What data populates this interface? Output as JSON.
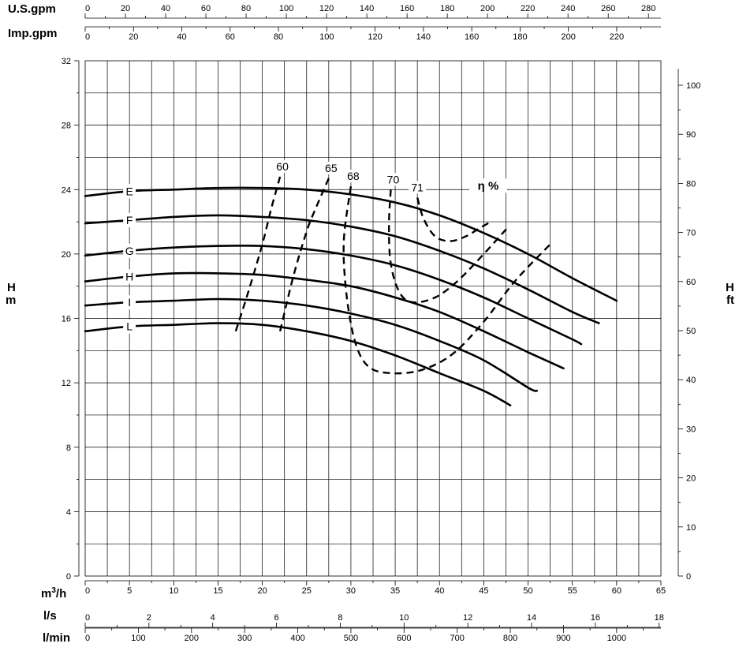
{
  "chart_data": {
    "type": "line",
    "top_axes": [
      {
        "unit": "U.S.gpm",
        "ticks": [
          0,
          20,
          40,
          60,
          80,
          100,
          120,
          140,
          160,
          180,
          200,
          220,
          240,
          260,
          280
        ],
        "per_m3h": 4.4029
      },
      {
        "unit": "Imp.gpm",
        "ticks": [
          0,
          20,
          40,
          60,
          80,
          100,
          120,
          140,
          160,
          180,
          200,
          220
        ],
        "per_m3h": 3.6662
      }
    ],
    "bottom_axes": [
      {
        "unit": "m",
        "superscript": "3",
        "unit_suffix": "/h",
        "ticks": [
          0,
          5,
          10,
          15,
          20,
          25,
          30,
          35,
          40,
          45,
          50,
          55,
          60,
          65
        ],
        "per_m3h": 1
      },
      {
        "unit": "l/s",
        "ticks": [
          0,
          2,
          4,
          6,
          8,
          10,
          12,
          14,
          16,
          18
        ],
        "per_m3h": 0.27778
      },
      {
        "unit": "l/min",
        "ticks": [
          0,
          100,
          200,
          300,
          400,
          500,
          600,
          700,
          800,
          900,
          1000
        ],
        "per_m3h": 16.6667
      }
    ],
    "left_axis": {
      "unit_line1": "H",
      "unit_line2": "m",
      "ticks": [
        0,
        4,
        8,
        12,
        16,
        20,
        24,
        28,
        32
      ],
      "ylim": [
        0,
        32
      ]
    },
    "right_axis": {
      "unit_line1": "H",
      "unit_line2": "ft",
      "ticks": [
        0,
        10,
        20,
        30,
        40,
        50,
        60,
        70,
        80,
        90,
        100
      ],
      "per_m": 3.2808
    },
    "xlim": [
      0,
      65
    ],
    "grid": true,
    "series": [
      {
        "name": "E",
        "x": [
          0,
          5,
          10,
          15,
          20,
          25,
          30,
          35,
          40,
          45,
          50,
          55,
          60
        ],
        "y": [
          23.6,
          23.9,
          24.0,
          24.1,
          24.1,
          24.0,
          23.7,
          23.2,
          22.4,
          21.3,
          20.0,
          18.5,
          17.1
        ]
      },
      {
        "name": "F",
        "x": [
          0,
          5,
          10,
          15,
          20,
          25,
          30,
          35,
          40,
          45,
          50,
          55,
          58
        ],
        "y": [
          21.9,
          22.1,
          22.3,
          22.4,
          22.3,
          22.1,
          21.7,
          21.1,
          20.2,
          19.1,
          17.8,
          16.4,
          15.7
        ]
      },
      {
        "name": "G",
        "x": [
          0,
          5,
          10,
          15,
          20,
          25,
          30,
          35,
          40,
          45,
          50,
          55,
          56
        ],
        "y": [
          19.9,
          20.2,
          20.4,
          20.5,
          20.5,
          20.3,
          19.9,
          19.3,
          18.4,
          17.3,
          16.0,
          14.7,
          14.4
        ]
      },
      {
        "name": "H",
        "x": [
          0,
          5,
          10,
          15,
          20,
          25,
          30,
          35,
          40,
          45,
          50,
          54
        ],
        "y": [
          18.3,
          18.6,
          18.8,
          18.8,
          18.7,
          18.4,
          18.0,
          17.3,
          16.4,
          15.2,
          13.9,
          12.9
        ]
      },
      {
        "name": "I",
        "x": [
          0,
          5,
          10,
          15,
          20,
          25,
          30,
          35,
          40,
          45,
          50,
          51
        ],
        "y": [
          16.8,
          17.0,
          17.1,
          17.2,
          17.1,
          16.8,
          16.3,
          15.6,
          14.6,
          13.4,
          11.7,
          11.5
        ]
      },
      {
        "name": "L",
        "x": [
          0,
          5,
          10,
          15,
          20,
          25,
          30,
          35,
          40,
          45,
          48
        ],
        "y": [
          15.2,
          15.5,
          15.6,
          15.7,
          15.6,
          15.2,
          14.6,
          13.7,
          12.6,
          11.5,
          10.6
        ]
      }
    ],
    "efficiency_title": "η %",
    "efficiency_curves": [
      {
        "label": "60",
        "x": [
          17,
          18.5,
          20,
          21,
          22
        ],
        "y": [
          15.2,
          17.8,
          20.6,
          22.8,
          24.8
        ]
      },
      {
        "label": "65",
        "x": [
          22,
          23.5,
          25,
          26,
          27.5
        ],
        "y": [
          15.2,
          18.6,
          21.4,
          22.8,
          24.7
        ]
      },
      {
        "label": "68",
        "x": [
          30,
          29.2,
          29.5,
          30.5,
          32,
          34.5,
          38,
          41.5,
          45,
          48.5,
          52.5
        ],
        "y": [
          24.2,
          20.8,
          17.5,
          14.5,
          13.0,
          12.6,
          12.8,
          13.8,
          15.8,
          18.3,
          20.6
        ]
      },
      {
        "label": "70",
        "x": [
          34.5,
          34.3,
          34.5,
          35.5,
          37,
          39.5,
          42,
          45,
          47.8
        ],
        "y": [
          24.0,
          21.8,
          19.4,
          17.6,
          17.0,
          17.3,
          18.3,
          20.0,
          21.7
        ]
      },
      {
        "label": "71",
        "x": [
          37.5,
          38.2,
          39.5,
          41.2,
          43,
          44.5,
          45.8
        ],
        "y": [
          23.5,
          22.2,
          21.1,
          20.8,
          21.1,
          21.6,
          22.0
        ]
      }
    ]
  }
}
